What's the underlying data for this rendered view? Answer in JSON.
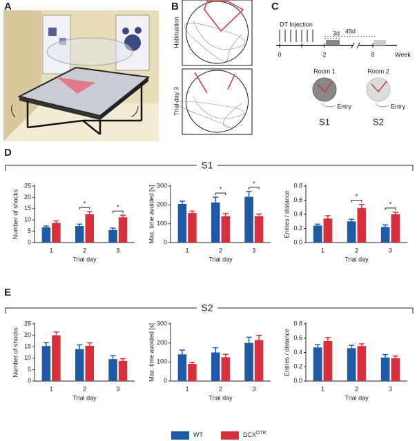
{
  "panel_letters": [
    "A",
    "B",
    "C",
    "D",
    "E"
  ],
  "panel_b": {
    "rows": [
      "Habituation",
      "Trial day 3"
    ]
  },
  "panel_c": {
    "injection": "DT Injection",
    "short_interval": "3d",
    "long_interval": "45d",
    "timeline_ticks": [
      "0",
      "2",
      "8"
    ],
    "unit": "Week",
    "rooms": [
      {
        "name": "Room 1",
        "entry": "Entry",
        "session": "S1"
      },
      {
        "name": "Room 2",
        "entry": "Entry",
        "session": "S2"
      }
    ]
  },
  "sections": [
    "S1",
    "S2"
  ],
  "legend": [
    {
      "name": "WT",
      "color": "#1f5aa6"
    },
    {
      "name": "DCX",
      "superscript": "DTR",
      "color": "#d7303c"
    }
  ],
  "chart_data": [
    {
      "type": "bar",
      "section": 0,
      "ylabel": "Number of shocks",
      "xlabel": "Trial day",
      "categories": [
        "1",
        "2",
        "3"
      ],
      "series": [
        {
          "values": [
            6.7,
            7.3,
            5.6
          ],
          "errors": [
            0.6,
            0.8,
            0.8
          ]
        },
        {
          "values": [
            8.7,
            12.5,
            11.2
          ],
          "errors": [
            0.9,
            1.2,
            0.9
          ]
        }
      ],
      "ylim": [
        0,
        25
      ],
      "yticks": [
        0,
        5,
        10,
        15,
        20,
        25
      ],
      "annotations": [
        {
          "x": "2",
          "text": "*"
        },
        {
          "x": "3",
          "text": "*"
        }
      ]
    },
    {
      "type": "bar",
      "section": 0,
      "ylabel": "Max. time avoided [s]",
      "xlabel": "Trial day",
      "categories": [
        "1",
        "2",
        "3"
      ],
      "series": [
        {
          "values": [
            205,
            213,
            243
          ],
          "errors": [
            15,
            28,
            28
          ]
        },
        {
          "values": [
            157,
            140,
            140
          ],
          "errors": [
            10,
            15,
            12
          ]
        }
      ],
      "ylim": [
        0,
        300
      ],
      "yticks": [
        0,
        100,
        200,
        300
      ],
      "annotations": [
        {
          "x": "2",
          "text": "*"
        },
        {
          "x": "3",
          "text": "*"
        }
      ]
    },
    {
      "type": "bar",
      "section": 0,
      "ylabel": "Entries / distance",
      "xlabel": "Trial day",
      "categories": [
        "1",
        "2",
        "3"
      ],
      "series": [
        {
          "values": [
            0.24,
            0.3,
            0.22
          ],
          "errors": [
            0.02,
            0.03,
            0.03
          ]
        },
        {
          "values": [
            0.34,
            0.49,
            0.4
          ],
          "errors": [
            0.04,
            0.05,
            0.03
          ]
        }
      ],
      "ylim": [
        0,
        0.8
      ],
      "yticks": [
        {
          "value": 0,
          "label": "0.0"
        },
        0.2,
        0.4,
        0.6,
        0.8
      ],
      "annotations": [
        {
          "x": "2",
          "text": "*"
        },
        {
          "x": "3",
          "text": "*"
        }
      ]
    },
    {
      "type": "bar",
      "section": 1,
      "ylabel": "Number of shocks",
      "xlabel": "Trial day",
      "categories": [
        "1",
        "2",
        "3"
      ],
      "series": [
        {
          "values": [
            15.3,
            14,
            9.6
          ],
          "errors": [
            1.5,
            1.8,
            1.5
          ]
        },
        {
          "values": [
            20,
            15.4,
            8.8
          ],
          "errors": [
            1.5,
            1.3,
            1.0
          ]
        }
      ],
      "ylim": [
        0,
        25
      ],
      "yticks": [
        0,
        5,
        10,
        15,
        20,
        25
      ]
    },
    {
      "type": "bar",
      "section": 1,
      "ylabel": "Max. time avoided [s]",
      "xlabel": "Trial day",
      "categories": [
        "1",
        "2",
        "3"
      ],
      "series": [
        {
          "values": [
            140,
            150,
            200
          ],
          "errors": [
            22,
            25,
            30
          ]
        },
        {
          "values": [
            90,
            125,
            215
          ],
          "errors": [
            8,
            15,
            25
          ]
        }
      ],
      "ylim": [
        0,
        300
      ],
      "yticks": [
        0,
        100,
        200,
        300
      ]
    },
    {
      "type": "bar",
      "section": 1,
      "ylabel": "Entries / distance",
      "xlabel": "Trial day",
      "categories": [
        "1",
        "2",
        "3"
      ],
      "series": [
        {
          "values": [
            0.47,
            0.46,
            0.33
          ],
          "errors": [
            0.04,
            0.04,
            0.04
          ]
        },
        {
          "values": [
            0.56,
            0.49,
            0.32
          ],
          "errors": [
            0.05,
            0.03,
            0.03
          ]
        }
      ],
      "ylim": [
        0,
        0.8
      ],
      "yticks": [
        {
          "value": 0,
          "label": "0.0"
        },
        0.2,
        0.4,
        0.6,
        0.8
      ]
    }
  ]
}
